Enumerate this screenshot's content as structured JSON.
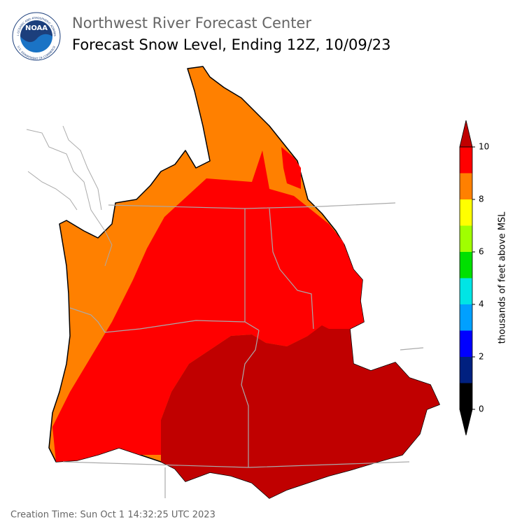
{
  "header": {
    "organization": "Northwest River Forecast Center",
    "title": "Forecast Snow Level, Ending 12Z, 10/09/23"
  },
  "logo": {
    "text": "NOAA",
    "ring_top": "NATIONAL OCEANIC AND ATMOSPHERIC ADMINISTRATION",
    "ring_bottom": "U.S. DEPARTMENT OF COMMERCE"
  },
  "colorbar": {
    "label": "thousands of feet above MSL",
    "lim": [
      0,
      10
    ],
    "ticks": [
      0,
      2,
      4,
      6,
      8,
      10
    ],
    "bounds": [
      0,
      1,
      2,
      3,
      4,
      5,
      6,
      7,
      8,
      9,
      10
    ],
    "colors": [
      "#000000",
      "#002080",
      "#0000ff",
      "#00a0ff",
      "#00e5e5",
      "#00e000",
      "#a0ff00",
      "#ffff00",
      "#ff8000",
      "#ff0000"
    ],
    "under_color": "#000000",
    "over_color": "#c00000"
  },
  "footer": {
    "creation_time": "Creation Time: Sun Oct 1 14:32:25 UTC 2023"
  }
}
